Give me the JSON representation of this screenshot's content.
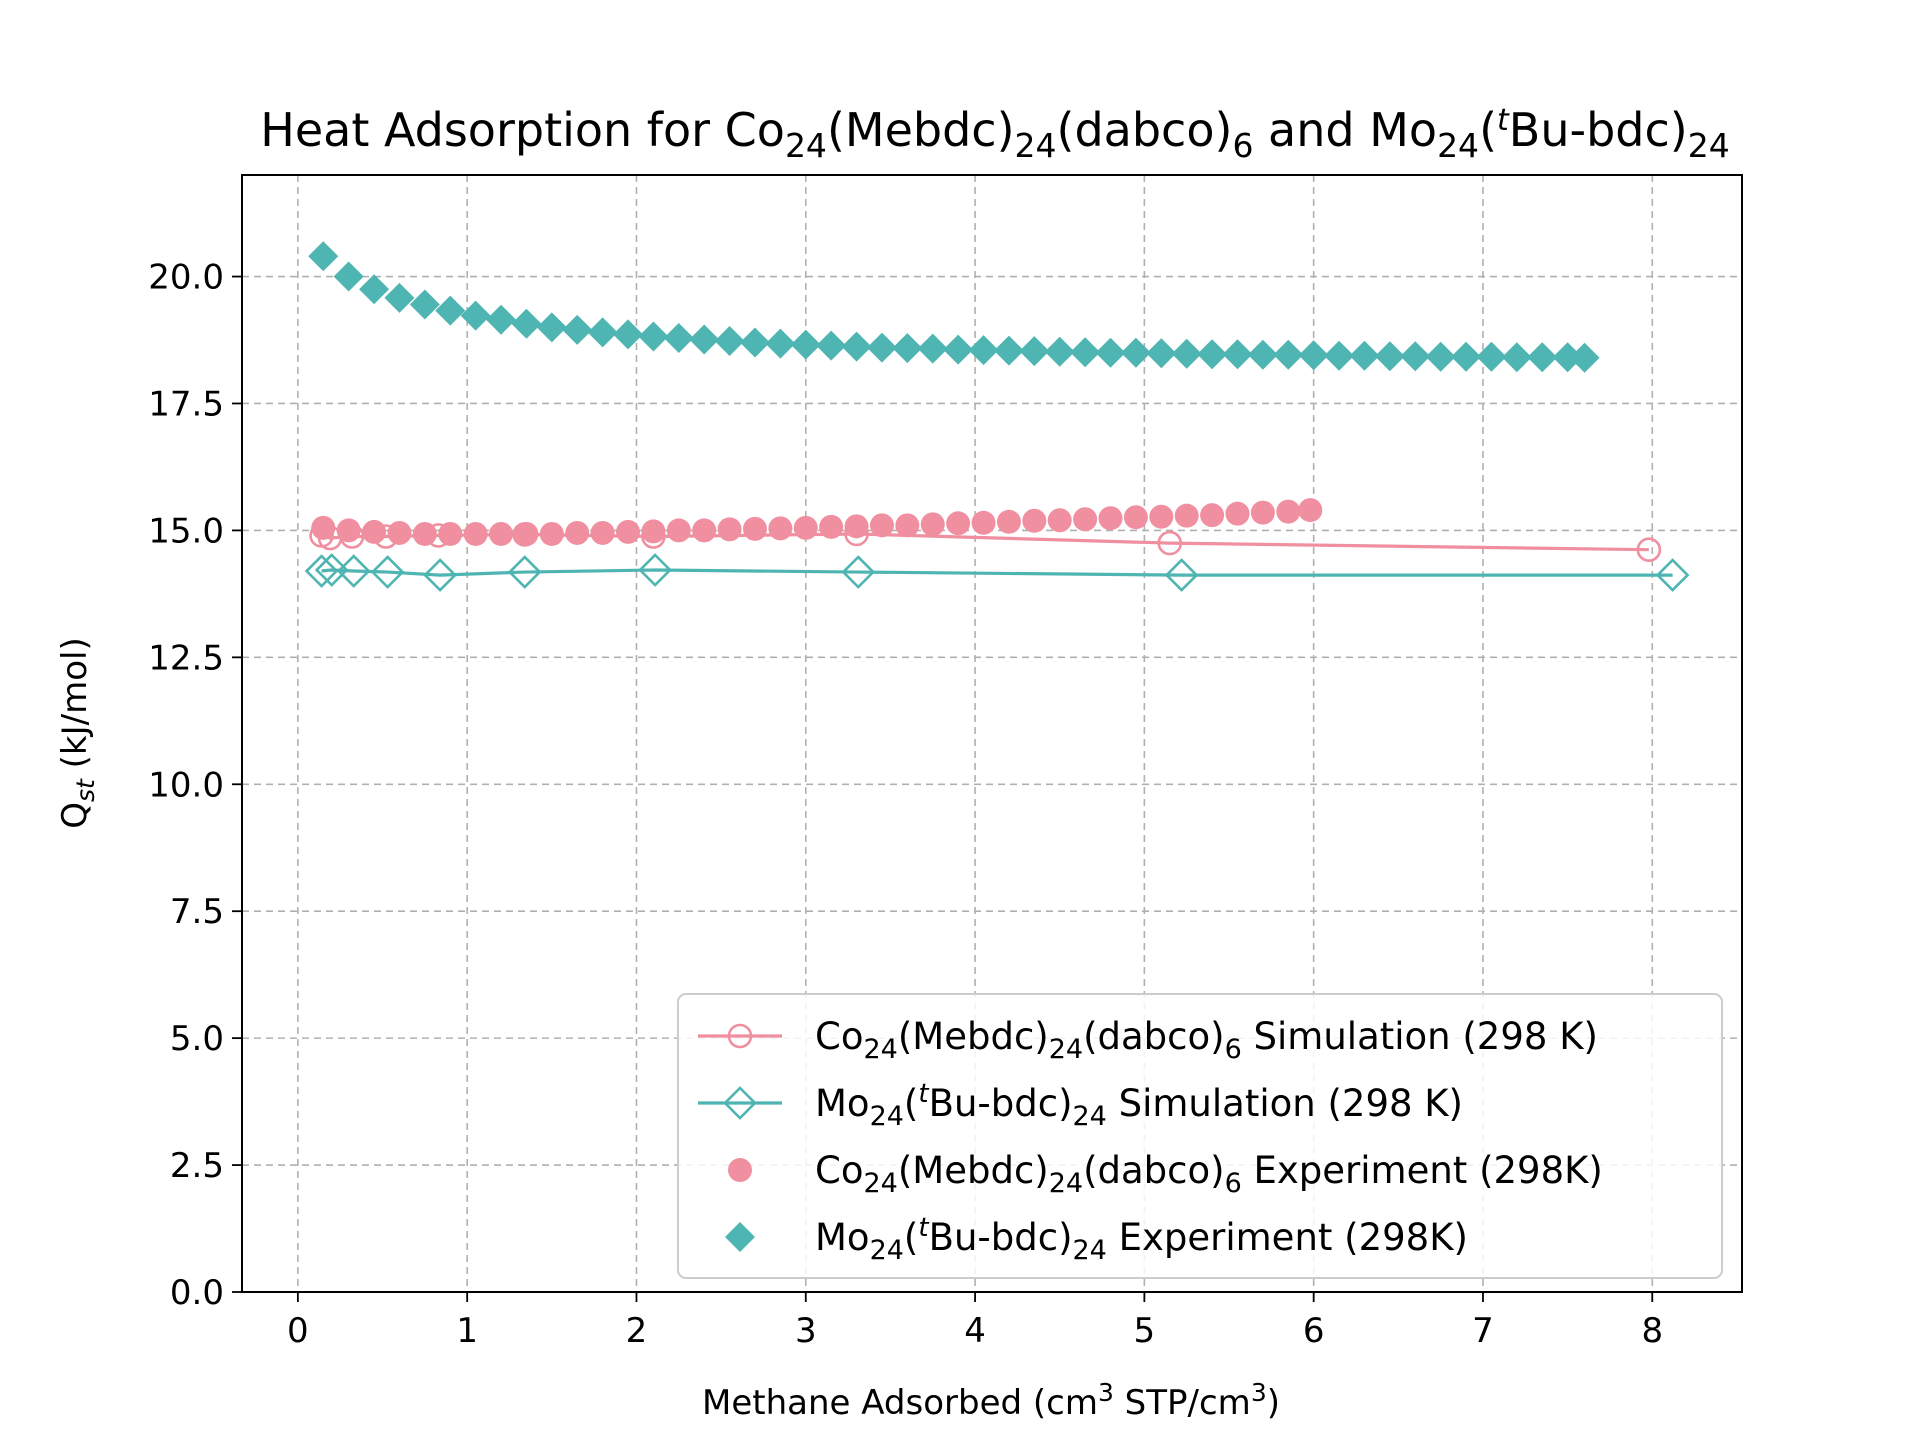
{
  "chart_data": {
    "type": "scatter",
    "title": {
      "p1": "Heat Adsorption for Co",
      "s1": "24",
      "p2": "(Mebdc)",
      "s2": "24",
      "p3": "(dabco)",
      "s3": "6",
      "p4": " and Mo",
      "s4": "24",
      "p5": "(",
      "s5": "t",
      "p6": "Bu-bdc)",
      "s6": "24"
    },
    "xlabel": {
      "p1": "Methane Adsorbed (cm",
      "s1": "3",
      "p2": " STP/cm",
      "s2": "3",
      "p3": ")"
    },
    "ylabel": {
      "p1": "Q",
      "s1": "st",
      "p2": " (kJ/mol)"
    },
    "xlim": [
      -0.33,
      8.53
    ],
    "ylim": [
      0,
      22
    ],
    "x_ticks": [
      "0",
      "1",
      "2",
      "3",
      "4",
      "5",
      "6",
      "7",
      "8"
    ],
    "y_ticks": [
      "0.0",
      "2.5",
      "5.0",
      "7.5",
      "10.0",
      "12.5",
      "15.0",
      "17.5",
      "20.0"
    ],
    "grid": true,
    "legend_position": "lower right",
    "series": [
      {
        "name": "Co24(Mebdc)24(dabco)6 Simulation (298 K)",
        "label_parts": [
          {
            "t": "Co"
          },
          {
            "t": "24",
            "sub": true
          },
          {
            "t": "(Mebdc)"
          },
          {
            "t": "24",
            "sub": true
          },
          {
            "t": "(dabco)"
          },
          {
            "t": "6",
            "sub": true
          },
          {
            "t": " Simulation (298 K)"
          }
        ],
        "style": "line-open-circle",
        "color": "#f08fa0",
        "x": [
          0.14,
          0.19,
          0.32,
          0.52,
          0.83,
          1.34,
          2.1,
          3.3,
          5.15,
          7.98
        ],
        "y": [
          14.9,
          14.85,
          14.88,
          14.88,
          14.9,
          14.92,
          14.88,
          14.93,
          14.75,
          14.62
        ]
      },
      {
        "name": "Mo24(tBu-bdc)24 Simulation (298 K)",
        "label_parts": [
          {
            "t": "Mo"
          },
          {
            "t": "24",
            "sub": true
          },
          {
            "t": "("
          },
          {
            "t": "t",
            "sup": true,
            "italic": true
          },
          {
            "t": "Bu-bdc)"
          },
          {
            "t": "24",
            "sub": true
          },
          {
            "t": " Simulation (298 K)"
          }
        ],
        "style": "line-open-diamond",
        "color": "#4fb5b2",
        "x": [
          0.14,
          0.2,
          0.33,
          0.53,
          0.84,
          1.34,
          2.11,
          3.31,
          5.22,
          8.12
        ],
        "y": [
          14.2,
          14.22,
          14.2,
          14.18,
          14.12,
          14.18,
          14.22,
          14.18,
          14.12,
          14.12
        ]
      },
      {
        "name": "Co24(Mebdc)24(dabco)6 Experiment (298K)",
        "label_parts": [
          {
            "t": "Co"
          },
          {
            "t": "24",
            "sub": true
          },
          {
            "t": "(Mebdc)"
          },
          {
            "t": "24",
            "sub": true
          },
          {
            "t": "(dabco)"
          },
          {
            "t": "6",
            "sub": true
          },
          {
            "t": " Experiment (298K)"
          }
        ],
        "style": "filled-circle",
        "color": "#f08fa0",
        "x": [
          0.15,
          0.3,
          0.45,
          0.6,
          0.75,
          0.9,
          1.05,
          1.2,
          1.35,
          1.5,
          1.65,
          1.8,
          1.95,
          2.1,
          2.25,
          2.4,
          2.55,
          2.7,
          2.85,
          3.0,
          3.15,
          3.3,
          3.45,
          3.6,
          3.75,
          3.9,
          4.05,
          4.2,
          4.35,
          4.5,
          4.65,
          4.8,
          4.95,
          5.1,
          5.25,
          5.4,
          5.55,
          5.7,
          5.85,
          5.98
        ],
        "y": [
          15.05,
          15.0,
          14.97,
          14.95,
          14.93,
          14.93,
          14.93,
          14.93,
          14.93,
          14.93,
          14.95,
          14.95,
          14.97,
          14.98,
          15.0,
          15.0,
          15.02,
          15.03,
          15.04,
          15.05,
          15.07,
          15.08,
          15.1,
          15.1,
          15.12,
          15.14,
          15.15,
          15.17,
          15.19,
          15.2,
          15.22,
          15.24,
          15.26,
          15.27,
          15.29,
          15.3,
          15.33,
          15.35,
          15.37,
          15.4
        ]
      },
      {
        "name": "Mo24(tBu-bdc)24 Experiment (298K)",
        "label_parts": [
          {
            "t": "Mo"
          },
          {
            "t": "24",
            "sub": true
          },
          {
            "t": "("
          },
          {
            "t": "t",
            "sup": true,
            "italic": true
          },
          {
            "t": "Bu-bdc)"
          },
          {
            "t": "24",
            "sub": true
          },
          {
            "t": " Experiment (298K)"
          }
        ],
        "style": "filled-diamond",
        "color": "#4fb5b2",
        "x": [
          0.15,
          0.3,
          0.45,
          0.6,
          0.75,
          0.9,
          1.05,
          1.2,
          1.35,
          1.5,
          1.65,
          1.8,
          1.95,
          2.1,
          2.25,
          2.4,
          2.55,
          2.7,
          2.85,
          3.0,
          3.15,
          3.3,
          3.45,
          3.6,
          3.75,
          3.9,
          4.05,
          4.2,
          4.35,
          4.5,
          4.65,
          4.8,
          4.95,
          5.1,
          5.25,
          5.4,
          5.55,
          5.7,
          5.85,
          6.0,
          6.15,
          6.3,
          6.45,
          6.6,
          6.75,
          6.9,
          7.05,
          7.2,
          7.35,
          7.5,
          7.6
        ],
        "y": [
          20.4,
          20.0,
          19.75,
          19.58,
          19.45,
          19.33,
          19.23,
          19.15,
          19.07,
          19.0,
          18.95,
          18.9,
          18.86,
          18.82,
          18.79,
          18.76,
          18.73,
          18.7,
          18.68,
          18.66,
          18.64,
          18.62,
          18.6,
          18.59,
          18.58,
          18.56,
          18.55,
          18.54,
          18.53,
          18.52,
          18.51,
          18.5,
          18.5,
          18.49,
          18.48,
          18.47,
          18.47,
          18.46,
          18.46,
          18.45,
          18.44,
          18.44,
          18.43,
          18.43,
          18.42,
          18.42,
          18.42,
          18.41,
          18.41,
          18.41,
          18.4
        ]
      }
    ]
  }
}
